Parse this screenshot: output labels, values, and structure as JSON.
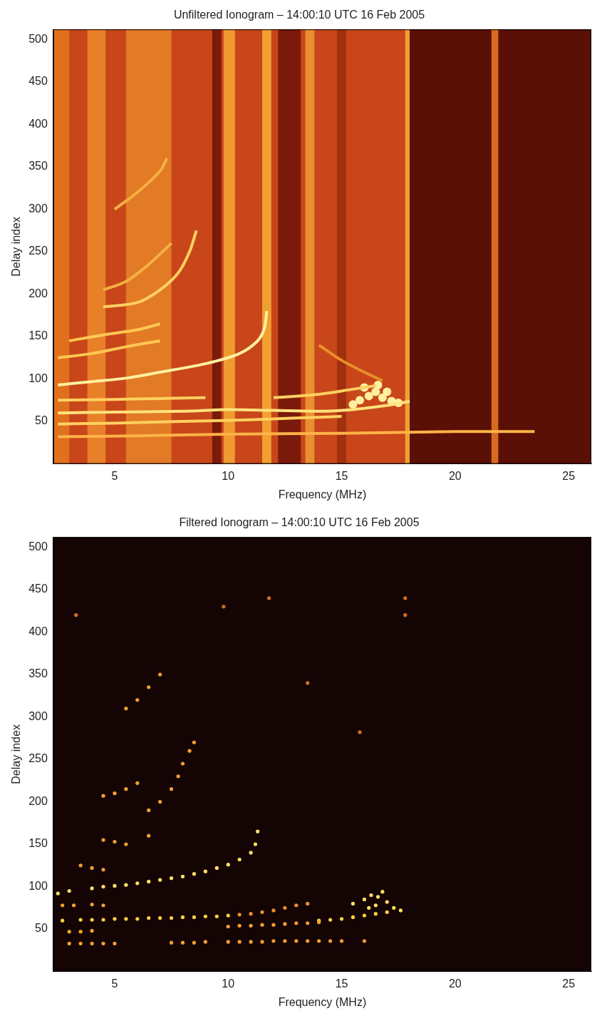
{
  "chart_data": [
    {
      "type": "scatter",
      "title": "Unfiltered Ionogram – 14:00:10 UTC 16 Feb 2005",
      "x_label": "Frequency (MHz)",
      "y_label": "Delay index",
      "xlim": [
        2.3,
        26
      ],
      "ylim": [
        0,
        512
      ],
      "xticks": [
        5,
        10,
        15,
        20,
        25
      ],
      "yticks": [
        50,
        100,
        150,
        200,
        250,
        300,
        350,
        400,
        450,
        500
      ],
      "grid": false,
      "noise_bands": [
        {
          "x": [
            2.3,
            26
          ],
          "color": "#8a1c0c"
        },
        {
          "x": [
            2.3,
            18
          ],
          "color": "#c8461a"
        },
        {
          "x": [
            2.3,
            3
          ],
          "color": "#e0701e"
        },
        {
          "x": [
            3.8,
            4.6
          ],
          "color": "#e8802a"
        },
        {
          "x": [
            5.5,
            7.5
          ],
          "color": "#e27a26"
        },
        {
          "x": [
            9.3,
            9.7
          ],
          "color": "#7a1a0a"
        },
        {
          "x": [
            9.8,
            10.3
          ],
          "color": "#f09a30"
        },
        {
          "x": [
            11.5,
            11.9
          ],
          "color": "#f0a030"
        },
        {
          "x": [
            12.2,
            13.2
          ],
          "color": "#7a1a0a"
        },
        {
          "x": [
            13.4,
            13.8
          ],
          "color": "#e89030"
        },
        {
          "x": [
            14.8,
            15.2
          ],
          "color": "#a0300e"
        },
        {
          "x": [
            17.8,
            18
          ],
          "color": "#f0a030"
        },
        {
          "x": [
            18,
            26
          ],
          "color": "#5a1006"
        },
        {
          "x": [
            21.6,
            21.9
          ],
          "color": "#d86a22"
        }
      ],
      "series": [
        {
          "color": "#ffb347",
          "line_style": "solid",
          "marker": "none",
          "values": [
            [
              2.5,
              32
            ],
            [
              6,
              33
            ],
            [
              10,
              35
            ],
            [
              15,
              36
            ],
            [
              20,
              38
            ],
            [
              23.5,
              38
            ]
          ]
        },
        {
          "color": "#ffd060",
          "line_style": "solid",
          "marker": "none",
          "values": [
            [
              2.5,
              47
            ],
            [
              5,
              48
            ],
            [
              8,
              50
            ],
            [
              11,
              52
            ],
            [
              13,
              54
            ],
            [
              15,
              56
            ]
          ]
        },
        {
          "color": "#ffe27a",
          "line_style": "solid",
          "marker": "none",
          "values": [
            [
              2.5,
              60
            ],
            [
              5,
              61
            ],
            [
              8,
              62
            ],
            [
              10,
              64
            ],
            [
              12,
              63
            ],
            [
              14,
              62
            ],
            [
              15.5,
              64
            ],
            [
              16.5,
              67
            ],
            [
              17.5,
              71
            ],
            [
              18,
              74
            ]
          ]
        },
        {
          "color": "#ffd060",
          "line_style": "solid",
          "marker": "none",
          "values": [
            [
              12,
              78
            ],
            [
              14,
              82
            ],
            [
              15.5,
              88
            ],
            [
              16.5,
              92
            ]
          ]
        },
        {
          "color": "#ffd060",
          "line_style": "solid",
          "marker": "none",
          "values": [
            [
              2.5,
              75
            ],
            [
              5,
              76
            ],
            [
              7,
              77
            ],
            [
              9,
              78
            ]
          ]
        },
        {
          "color": "#fff0a0",
          "line_style": "solid",
          "marker": "none",
          "values": [
            [
              2.5,
              93
            ],
            [
              4,
              97
            ],
            [
              5.5,
              101
            ],
            [
              7,
              108
            ],
            [
              9,
              118
            ],
            [
              10.5,
              130
            ],
            [
              11.3,
              145
            ],
            [
              11.6,
              160
            ],
            [
              11.7,
              180
            ]
          ]
        },
        {
          "color": "#e8902a",
          "line_style": "solid",
          "marker": "none",
          "values": [
            [
              14,
              140
            ],
            [
              15,
              122
            ],
            [
              16,
              108
            ],
            [
              16.8,
              98
            ]
          ]
        },
        {
          "color": "#ffc850",
          "line_style": "solid",
          "marker": "none",
          "values": [
            [
              2.5,
              125
            ],
            [
              4,
              130
            ],
            [
              5.5,
              138
            ],
            [
              7,
              145
            ]
          ]
        },
        {
          "color": "#ffc850",
          "line_style": "solid",
          "marker": "none",
          "values": [
            [
              3,
              145
            ],
            [
              4.5,
              152
            ],
            [
              6,
              158
            ],
            [
              7,
              165
            ]
          ]
        },
        {
          "color": "#ffd060",
          "line_style": "solid",
          "marker": "none",
          "values": [
            [
              4.5,
              185
            ],
            [
              6,
              190
            ],
            [
              7,
              205
            ],
            [
              7.8,
              225
            ],
            [
              8.3,
              250
            ],
            [
              8.6,
              275
            ]
          ]
        },
        {
          "color": "#f5b040",
          "line_style": "solid",
          "marker": "none",
          "values": [
            [
              4.5,
              205
            ],
            [
              5.5,
              215
            ],
            [
              6.5,
              235
            ],
            [
              7.5,
              260
            ]
          ]
        },
        {
          "color": "#f5b040",
          "line_style": "solid",
          "marker": "none",
          "values": [
            [
              5,
              300
            ],
            [
              6,
              320
            ],
            [
              7,
              345
            ],
            [
              7.3,
              360
            ]
          ]
        },
        {
          "color": "#fff0a0",
          "line_style": "none",
          "marker": "circle",
          "values": [
            [
              15.8,
              75
            ],
            [
              16.2,
              80
            ],
            [
              16.5,
              85
            ],
            [
              16.8,
              78
            ],
            [
              17.2,
              74
            ],
            [
              16,
              90
            ],
            [
              16.6,
              93
            ],
            [
              17,
              85
            ],
            [
              17.5,
              72
            ],
            [
              15.5,
              70
            ]
          ]
        }
      ]
    },
    {
      "type": "scatter",
      "title": "Filtered Ionogram – 14:00:10 UTC 16 Feb 2005",
      "x_label": "Frequency (MHz)",
      "y_label": "Delay index",
      "xlim": [
        2.3,
        26
      ],
      "ylim": [
        0,
        512
      ],
      "xticks": [
        5,
        10,
        15,
        20,
        25
      ],
      "yticks": [
        50,
        100,
        150,
        200,
        250,
        300,
        350,
        400,
        450,
        500
      ],
      "grid": false,
      "noise_bands": [
        {
          "x": [
            2.3,
            26
          ],
          "color": "#140404"
        }
      ],
      "series": [
        {
          "color": "#f0a030",
          "line_style": "none",
          "marker": "circle",
          "values": [
            [
              3,
              33
            ],
            [
              3.5,
              33
            ],
            [
              4,
              33
            ],
            [
              4.5,
              33
            ],
            [
              5,
              33
            ],
            [
              7.5,
              34
            ],
            [
              8,
              34
            ],
            [
              8.5,
              34
            ],
            [
              9,
              35
            ],
            [
              10,
              35
            ],
            [
              10.5,
              35
            ],
            [
              11,
              35
            ],
            [
              11.5,
              35
            ],
            [
              12,
              36
            ],
            [
              12.5,
              36
            ],
            [
              13,
              36
            ],
            [
              13.5,
              36
            ],
            [
              14,
              36
            ],
            [
              14.5,
              36
            ],
            [
              15,
              36
            ],
            [
              16,
              36
            ]
          ]
        },
        {
          "color": "#f0a030",
          "line_style": "none",
          "marker": "circle",
          "values": [
            [
              3,
              47
            ],
            [
              3.5,
              47
            ],
            [
              4,
              48
            ],
            [
              10,
              53
            ],
            [
              10.5,
              54
            ],
            [
              11,
              54
            ],
            [
              11.5,
              55
            ],
            [
              12,
              55
            ],
            [
              12.5,
              56
            ],
            [
              13,
              57
            ],
            [
              13.5,
              57
            ],
            [
              14,
              58
            ]
          ]
        },
        {
          "color": "#ffd040",
          "line_style": "none",
          "marker": "circle",
          "values": [
            [
              2.7,
              60
            ],
            [
              3.5,
              61
            ],
            [
              4,
              61
            ],
            [
              4.5,
              61
            ],
            [
              5,
              62
            ],
            [
              5.5,
              62
            ],
            [
              6,
              62
            ],
            [
              6.5,
              63
            ],
            [
              7,
              63
            ],
            [
              7.5,
              63
            ],
            [
              8,
              64
            ],
            [
              8.5,
              64
            ],
            [
              9,
              65
            ],
            [
              9.5,
              65
            ],
            [
              10,
              66
            ],
            [
              14,
              60
            ],
            [
              14.5,
              61
            ],
            [
              15,
              62
            ],
            [
              15.5,
              64
            ],
            [
              16,
              66
            ],
            [
              16.5,
              68
            ],
            [
              17,
              70
            ]
          ]
        },
        {
          "color": "#e8902a",
          "line_style": "none",
          "marker": "circle",
          "values": [
            [
              10.5,
              67
            ],
            [
              11,
              68
            ],
            [
              11.5,
              70
            ],
            [
              12,
              72
            ],
            [
              12.5,
              75
            ],
            [
              13,
              78
            ],
            [
              13.5,
              80
            ]
          ]
        },
        {
          "color": "#f0a030",
          "line_style": "none",
          "marker": "circle",
          "values": [
            [
              2.7,
              78
            ],
            [
              3.2,
              78
            ],
            [
              4,
              79
            ],
            [
              4.5,
              78
            ]
          ]
        },
        {
          "color": "#ffe060",
          "line_style": "none",
          "marker": "circle",
          "values": [
            [
              2.5,
              92
            ],
            [
              3,
              95
            ],
            [
              4,
              98
            ],
            [
              4.5,
              100
            ],
            [
              5,
              101
            ],
            [
              5.5,
              102
            ],
            [
              6,
              104
            ],
            [
              6.5,
              106
            ],
            [
              7,
              108
            ],
            [
              7.5,
              110
            ],
            [
              8,
              112
            ],
            [
              8.5,
              115
            ],
            [
              9,
              118
            ],
            [
              9.5,
              122
            ],
            [
              10,
              126
            ],
            [
              10.5,
              132
            ],
            [
              11,
              140
            ],
            [
              11.2,
              150
            ],
            [
              11.3,
              165
            ]
          ]
        },
        {
          "color": "#f0a030",
          "line_style": "none",
          "marker": "circle",
          "values": [
            [
              3.5,
              125
            ],
            [
              4,
              122
            ],
            [
              4.5,
              120
            ]
          ]
        },
        {
          "color": "#f0a030",
          "line_style": "none",
          "marker": "circle",
          "values": [
            [
              4.5,
              155
            ],
            [
              5,
              153
            ],
            [
              5.5,
              150
            ],
            [
              6.5,
              160
            ]
          ]
        },
        {
          "color": "#f0a030",
          "line_style": "none",
          "marker": "circle",
          "values": [
            [
              6.5,
              190
            ],
            [
              7,
              200
            ],
            [
              7.5,
              215
            ],
            [
              7.8,
              230
            ],
            [
              8,
              245
            ],
            [
              8.3,
              260
            ],
            [
              8.5,
              270
            ]
          ]
        },
        {
          "color": "#f0a030",
          "line_style": "none",
          "marker": "circle",
          "values": [
            [
              4.5,
              207
            ],
            [
              5,
              210
            ],
            [
              5.5,
              215
            ],
            [
              6,
              222
            ]
          ]
        },
        {
          "color": "#f0a030",
          "line_style": "none",
          "marker": "circle",
          "values": [
            [
              5.5,
              310
            ],
            [
              6,
              320
            ],
            [
              6.5,
              335
            ],
            [
              7,
              350
            ]
          ]
        },
        {
          "color": "#ffe060",
          "line_style": "none",
          "marker": "circle",
          "values": [
            [
              15.5,
              80
            ],
            [
              16,
              85
            ],
            [
              16.3,
              90
            ],
            [
              16.6,
              88
            ],
            [
              17,
              82
            ],
            [
              16.5,
              78
            ],
            [
              17.3,
              75
            ],
            [
              17.6,
              72
            ],
            [
              16.8,
              94
            ],
            [
              16.2,
              75
            ]
          ]
        },
        {
          "color": "#d07020",
          "line_style": "none",
          "marker": "circle",
          "values": [
            [
              3.3,
              420
            ],
            [
              9.8,
              430
            ],
            [
              11.8,
              440
            ],
            [
              17.8,
              440
            ],
            [
              17.8,
              420
            ],
            [
              15.8,
              282
            ],
            [
              13.5,
              340
            ]
          ]
        }
      ]
    }
  ]
}
